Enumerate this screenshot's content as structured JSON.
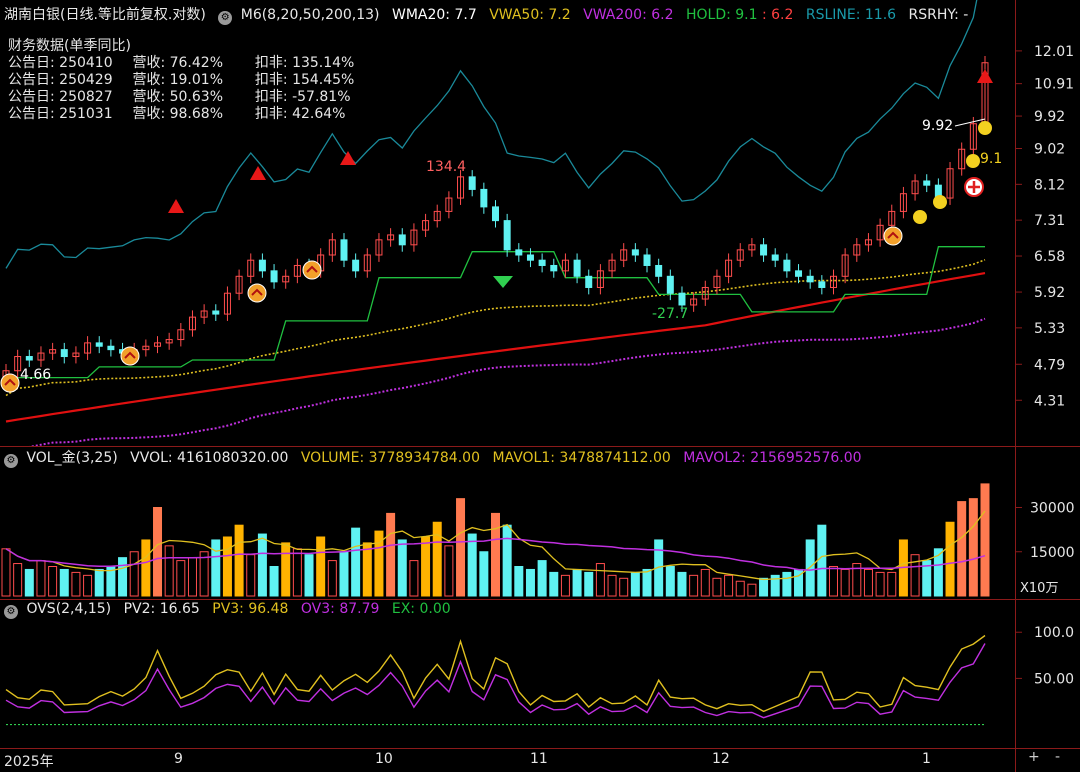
{
  "main_header": {
    "title": "湖南白银(日线.等比前复权.对数)",
    "m6": "M6(8,20,50,200,13)",
    "wma20": "WMA20: 7.7",
    "vwa50": "VWA50: 7.2",
    "vwa200": "VWA200: 6.2",
    "hold_a": "HOLD: 9.1",
    "hold_b": ": 6.2",
    "rsline": "RSLINE: 11.6",
    "rsrhy": "RSRHY: -"
  },
  "financial": {
    "title": "财务数据(单季同比)",
    "rows": [
      {
        "date": "公告日: 250410",
        "rev": "营收: 76.42%",
        "net": "扣非: 135.14%"
      },
      {
        "date": "公告日: 250429",
        "rev": "营收: 19.01%",
        "net": "扣非: 154.45%"
      },
      {
        "date": "公告日: 250827",
        "rev": "营收: 50.63%",
        "net": "扣非: -57.81%"
      },
      {
        "date": "公告日: 251031",
        "rev": "营收: 98.68%",
        "net": "扣非: 42.64%"
      }
    ]
  },
  "vol_header": {
    "name": "VOL_金(3,25)",
    "vvol": "VVOL: 4161080320.00",
    "volume": "VOLUME: 3778934784.00",
    "mavol1": "MAVOL1: 3478874112.00",
    "mavol2": "MAVOL2: 2156952576.00"
  },
  "ovs_header": {
    "name": "OVS(2,4,15)",
    "pv2": "PV2: 16.65",
    "pv3": "PV3: 96.48",
    "ov3": "OV3: 87.79",
    "ex": "EX: 0.00"
  },
  "colors": {
    "up": "#ff4d4d",
    "down": "#5ff2f2",
    "wma": "#e0c020",
    "vwa200": "#c030e0",
    "red_line": "#e01010",
    "green_line": "#20c040",
    "teal_line": "#1a8a9a",
    "axis": "#8b1a1a"
  },
  "x_axis": [
    "2025年",
    "9",
    "10",
    "11",
    "12",
    "1"
  ],
  "buttons": {
    "plus": "+",
    "minus": "-"
  },
  "chart_data": [
    {
      "type": "candlestick",
      "yscale": "log",
      "ylim": [
        3.95,
        12.4
      ],
      "price_ticks": [
        "12.01",
        "10.91",
        "9.92",
        "9.02",
        "8.12",
        "7.31",
        "6.58",
        "5.92",
        "5.33",
        "4.79",
        "4.31"
      ],
      "annotations": [
        "4.66",
        "134.4",
        "-27.7",
        "9.92",
        "9.1"
      ],
      "series_approx": {
        "close": [
          4.7,
          4.9,
          4.85,
          4.95,
          5.0,
          4.9,
          4.95,
          5.1,
          5.05,
          5.0,
          4.95,
          5.0,
          5.05,
          5.1,
          5.15,
          5.3,
          5.5,
          5.6,
          5.55,
          5.9,
          6.2,
          6.5,
          6.3,
          6.1,
          6.2,
          6.4,
          6.3,
          6.6,
          6.9,
          6.5,
          6.3,
          6.6,
          6.9,
          7.0,
          6.8,
          7.1,
          7.3,
          7.5,
          7.8,
          8.3,
          8.0,
          7.6,
          7.3,
          6.7,
          6.6,
          6.5,
          6.4,
          6.3,
          6.5,
          6.2,
          6.0,
          6.3,
          6.5,
          6.7,
          6.6,
          6.4,
          6.2,
          5.9,
          5.7,
          5.8,
          6.0,
          6.2,
          6.5,
          6.7,
          6.8,
          6.6,
          6.5,
          6.3,
          6.2,
          6.1,
          6.0,
          6.2,
          6.6,
          6.8,
          6.9,
          7.2,
          7.5,
          7.9,
          8.2,
          8.1,
          7.8,
          8.5,
          9.0,
          9.7,
          11.6
        ]
      }
    },
    {
      "type": "bar",
      "name": "volume",
      "unit": "X10万",
      "ticks": [
        "30000",
        "15000"
      ],
      "values": [
        16000,
        11000,
        9000,
        12000,
        10000,
        9000,
        8000,
        7000,
        9000,
        10000,
        13000,
        15000,
        19000,
        30000,
        17000,
        12000,
        13000,
        15000,
        19000,
        20000,
        24000,
        14000,
        21000,
        10000,
        18000,
        16000,
        14000,
        20000,
        12000,
        15000,
        23000,
        18000,
        22000,
        28000,
        19000,
        12000,
        20000,
        25000,
        17000,
        33000,
        21000,
        15000,
        28000,
        24000,
        10000,
        9000,
        12000,
        8000,
        7000,
        9000,
        8000,
        11000,
        7000,
        6000,
        8000,
        9000,
        19000,
        10000,
        8000,
        7000,
        9000,
        6000,
        7000,
        5000,
        4000,
        6000,
        7000,
        8000,
        9000,
        19000,
        24000,
        10000,
        9000,
        11000,
        9000,
        8000,
        8000,
        19000,
        14000,
        12000,
        16000,
        25000,
        32000,
        33000,
        38000
      ]
    },
    {
      "type": "line",
      "name": "OVS",
      "ticks": [
        "100.0",
        "50.00"
      ],
      "ylim": [
        -20,
        110
      ]
    }
  ]
}
